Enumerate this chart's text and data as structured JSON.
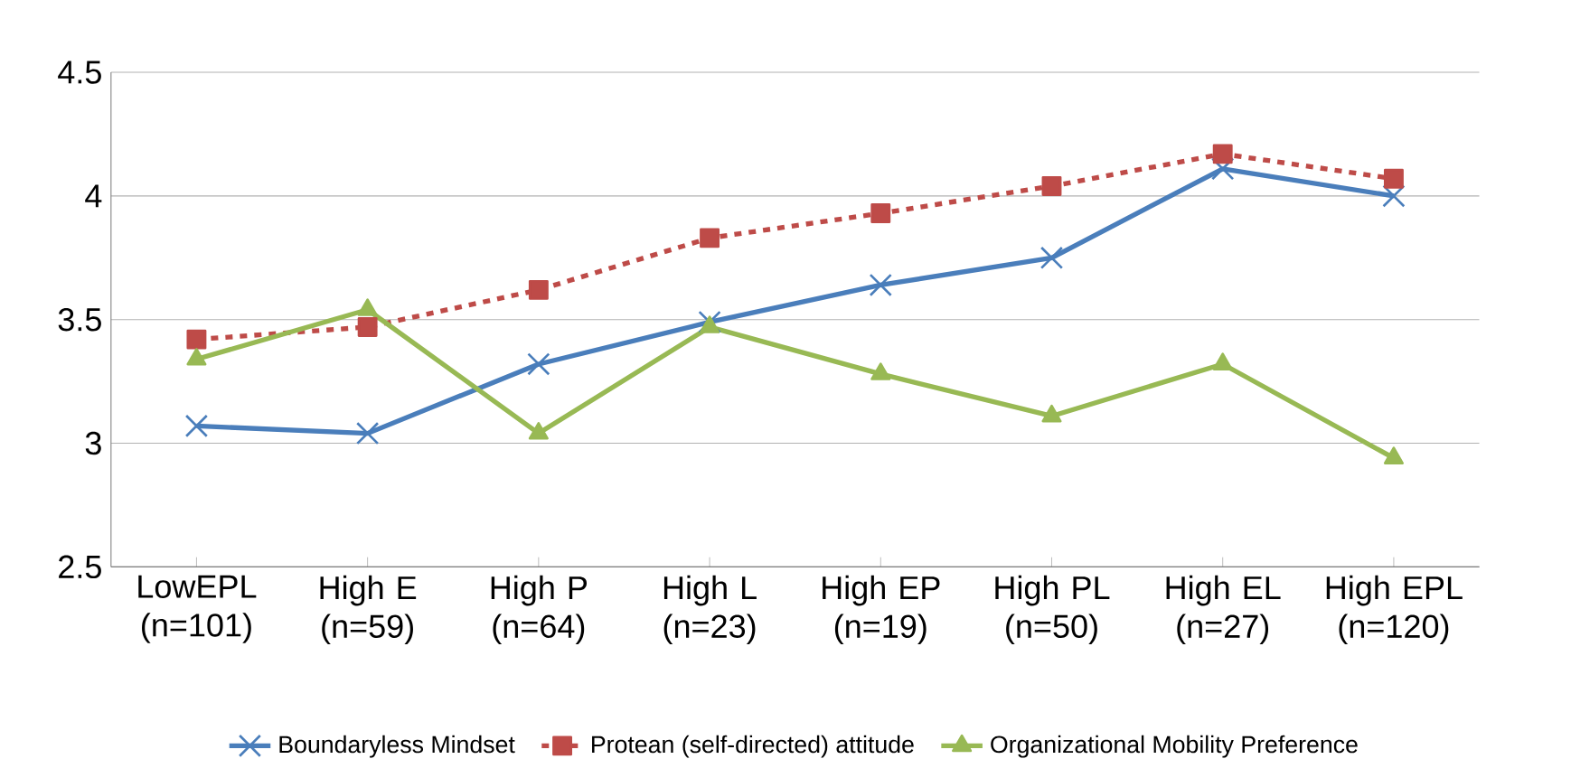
{
  "chart_data": {
    "type": "line",
    "categories": [
      "LowEPL (n=101)",
      "High E (n=59)",
      "High P (n=64)",
      "High L (n=23)",
      "High EP (n=19)",
      "High PL (n=50)",
      "High EL (n=27)",
      "High EPL (n=120)"
    ],
    "series": [
      {
        "name": "Boundaryless Mindset",
        "color": "#4a7ebb",
        "marker": "cross",
        "line_style": "solid",
        "values": [
          3.07,
          3.04,
          3.32,
          3.49,
          3.64,
          3.75,
          4.11,
          4.0
        ]
      },
      {
        "name": "Protean (self-directed) attitude",
        "color": "#be4b48",
        "marker": "square",
        "line_style": "dashed",
        "values": [
          3.42,
          3.47,
          3.62,
          3.83,
          3.93,
          4.04,
          4.17,
          4.07
        ]
      },
      {
        "name": "Organizational Mobility Preference",
        "color": "#98b954",
        "marker": "triangle",
        "line_style": "solid",
        "values": [
          3.34,
          3.54,
          3.04,
          3.47,
          3.28,
          3.11,
          3.32,
          2.94
        ]
      }
    ],
    "ylim": [
      2.5,
      4.5
    ],
    "yticks": [
      2.5,
      3,
      3.5,
      4,
      4.5
    ],
    "grid": "y",
    "legend": "bottom"
  }
}
